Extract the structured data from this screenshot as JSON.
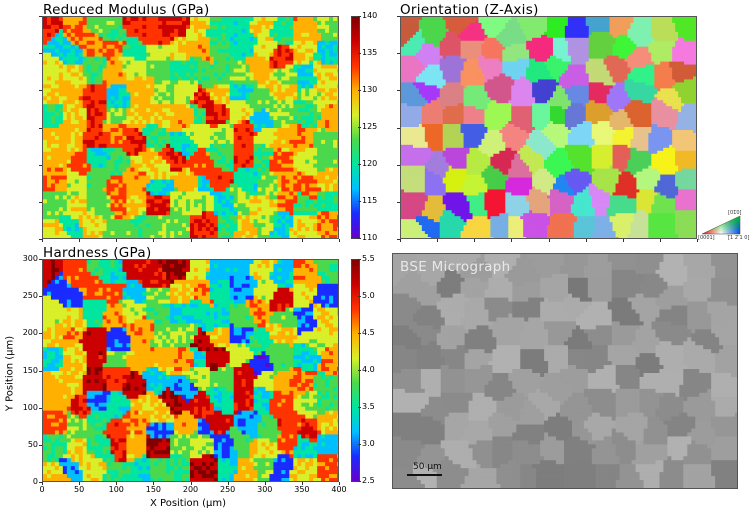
{
  "panels": {
    "modulus": {
      "title": "Reduced Modulus (GPa)"
    },
    "orientation": {
      "title": "Orientation (Z-Axis)"
    },
    "hardness": {
      "title": "Hardness (GPa)"
    },
    "bse": {
      "title": "BSE Micrograph"
    }
  },
  "ipf_legend": {
    "label_0001": "[0001]",
    "label_01-10": "[01̅0]",
    "label_-12-10": "[̅1 2 ̅1 0]"
  },
  "scalebar": {
    "label": "50 µm",
    "length_um": 50
  },
  "colors": {
    "rainbow": [
      "#6600cc",
      "#1a2bff",
      "#00bfff",
      "#00e6a0",
      "#4cd84c",
      "#d8ef2a",
      "#ffb000",
      "#ff3300",
      "#cc0000",
      "#800000"
    ],
    "bse_gray": "#8c8c8c"
  },
  "chart_data": [
    {
      "type": "heatmap",
      "title": "Reduced Modulus (GPa)",
      "colorbar": {
        "min": 110,
        "max": 140,
        "ticks": [
          "140",
          "135",
          "130",
          "125",
          "120",
          "115",
          "110"
        ]
      },
      "x_range": [
        0,
        400
      ],
      "y_range": [
        0,
        300
      ],
      "value_range": [
        110,
        140
      ]
    },
    {
      "type": "heatmap",
      "title": "Orientation (Z-Axis)",
      "x_range": [
        0,
        400
      ],
      "y_range": [
        0,
        300
      ]
    },
    {
      "type": "heatmap",
      "title": "Hardness (GPa)",
      "xlabel": "X Position (µm)",
      "ylabel": "Y Position (µm)",
      "x_ticks": [
        "0",
        "50",
        "100",
        "150",
        "200",
        "250",
        "300",
        "350",
        "400"
      ],
      "y_ticks": [
        "300",
        "250",
        "200",
        "150",
        "100",
        "50",
        "0"
      ],
      "x_range": [
        0,
        400
      ],
      "y_range": [
        0,
        300
      ],
      "colorbar": {
        "min": 2.5,
        "max": 5.5,
        "ticks": [
          "5.5",
          "5.0",
          "4.5",
          "4.0",
          "3.5",
          "3.0",
          "2.5"
        ]
      },
      "value_range": [
        2.5,
        5.5
      ]
    }
  ]
}
